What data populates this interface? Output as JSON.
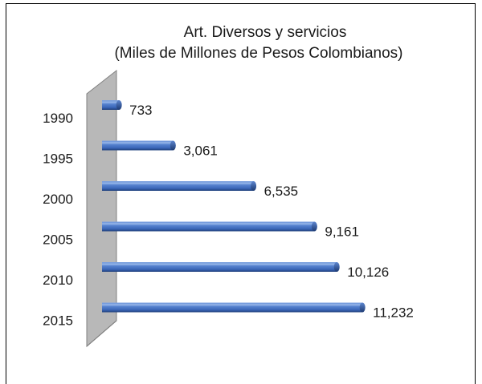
{
  "chart_data": {
    "type": "bar",
    "orientation": "horizontal",
    "title": "Art. Diversos y servicios",
    "subtitle": "(Miles de Millones de Pesos Colombianos)",
    "categories": [
      "1990",
      "1995",
      "2000",
      "2005",
      "2010",
      "2015"
    ],
    "values": [
      733,
      3061,
      6535,
      9161,
      10126,
      11232
    ],
    "value_labels": [
      "733",
      "3,061",
      "6,535",
      "9,161",
      "10,126",
      "11,232"
    ],
    "xlim": [
      0,
      12000
    ],
    "grid": false,
    "legend": "none",
    "colors": {
      "bar": "#3f6fc4",
      "bar_highlight": "#a8c2ee",
      "bar_shadow": "#1f3f7a",
      "wall": "#b8b8b8",
      "frame": "#000000",
      "text": "#1a1a1a"
    }
  }
}
